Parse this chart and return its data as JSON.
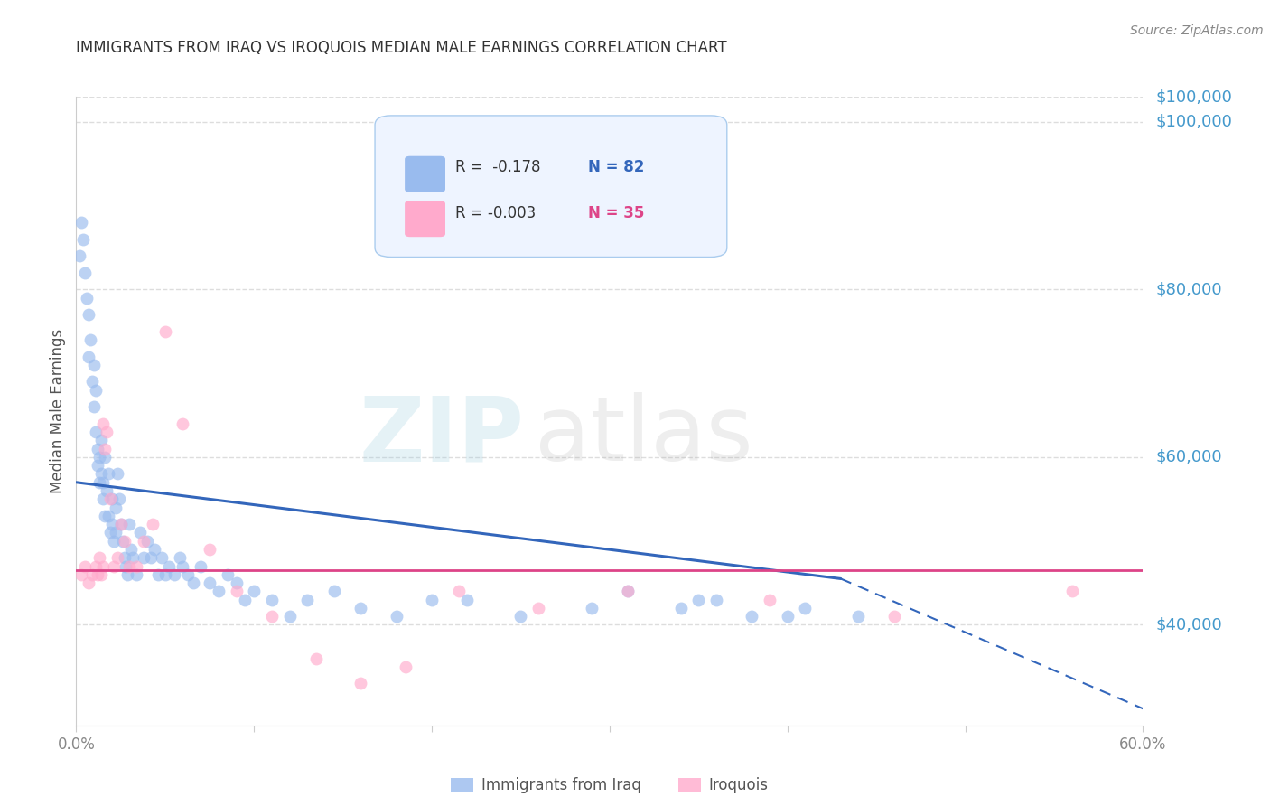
{
  "title": "IMMIGRANTS FROM IRAQ VS IROQUOIS MEDIAN MALE EARNINGS CORRELATION CHART",
  "source": "Source: ZipAtlas.com",
  "ylabel": "Median Male Earnings",
  "watermark_zip": "ZIP",
  "watermark_atlas": "atlas",
  "xlim": [
    0.0,
    0.6
  ],
  "ylim": [
    28000,
    103000
  ],
  "ytick_vals": [
    40000,
    60000,
    80000,
    100000
  ],
  "ytick_labels": [
    "$40,000",
    "$60,000",
    "$80,000",
    "$100,000"
  ],
  "blue_color": "#99BBEE",
  "pink_color": "#FFAACC",
  "blue_line_color": "#3366BB",
  "pink_line_color": "#DD4488",
  "blue_scatter_alpha": 0.65,
  "pink_scatter_alpha": 0.65,
  "legend_R_blue": " -0.178",
  "legend_N_blue": "82",
  "legend_R_pink": "-0.003",
  "legend_N_pink": "35",
  "legend_label_blue": "Immigrants from Iraq",
  "legend_label_pink": "Iroquois",
  "blue_trend_x0": 0.0,
  "blue_trend_y0": 57000,
  "blue_trend_x1": 0.43,
  "blue_trend_y1": 45500,
  "blue_trend_x2": 0.6,
  "blue_trend_y2": 30000,
  "pink_trend_y": 46500,
  "blue_x": [
    0.002,
    0.003,
    0.004,
    0.005,
    0.006,
    0.007,
    0.007,
    0.008,
    0.009,
    0.01,
    0.01,
    0.011,
    0.011,
    0.012,
    0.012,
    0.013,
    0.013,
    0.014,
    0.014,
    0.015,
    0.015,
    0.016,
    0.016,
    0.017,
    0.018,
    0.018,
    0.019,
    0.02,
    0.02,
    0.021,
    0.022,
    0.022,
    0.023,
    0.024,
    0.025,
    0.026,
    0.027,
    0.028,
    0.029,
    0.03,
    0.031,
    0.032,
    0.034,
    0.036,
    0.038,
    0.04,
    0.042,
    0.044,
    0.046,
    0.048,
    0.05,
    0.052,
    0.055,
    0.058,
    0.06,
    0.063,
    0.066,
    0.07,
    0.075,
    0.08,
    0.085,
    0.09,
    0.095,
    0.1,
    0.11,
    0.12,
    0.13,
    0.145,
    0.16,
    0.18,
    0.2,
    0.22,
    0.25,
    0.29,
    0.34,
    0.38,
    0.41,
    0.44,
    0.31,
    0.36,
    0.4,
    0.35
  ],
  "blue_y": [
    84000,
    88000,
    86000,
    82000,
    79000,
    77000,
    72000,
    74000,
    69000,
    71000,
    66000,
    68000,
    63000,
    61000,
    59000,
    60000,
    57000,
    62000,
    58000,
    57000,
    55000,
    53000,
    60000,
    56000,
    58000,
    53000,
    51000,
    55000,
    52000,
    50000,
    54000,
    51000,
    58000,
    55000,
    52000,
    50000,
    48000,
    47000,
    46000,
    52000,
    49000,
    48000,
    46000,
    51000,
    48000,
    50000,
    48000,
    49000,
    46000,
    48000,
    46000,
    47000,
    46000,
    48000,
    47000,
    46000,
    45000,
    47000,
    45000,
    44000,
    46000,
    45000,
    43000,
    44000,
    43000,
    41000,
    43000,
    44000,
    42000,
    41000,
    43000,
    43000,
    41000,
    42000,
    42000,
    41000,
    42000,
    41000,
    44000,
    43000,
    41000,
    43000
  ],
  "pink_x": [
    0.003,
    0.005,
    0.007,
    0.009,
    0.011,
    0.012,
    0.013,
    0.014,
    0.015,
    0.015,
    0.016,
    0.017,
    0.019,
    0.021,
    0.023,
    0.025,
    0.027,
    0.03,
    0.034,
    0.038,
    0.043,
    0.05,
    0.06,
    0.075,
    0.09,
    0.11,
    0.135,
    0.16,
    0.185,
    0.215,
    0.26,
    0.31,
    0.39,
    0.46,
    0.56
  ],
  "pink_y": [
    46000,
    47000,
    45000,
    46000,
    47000,
    46000,
    48000,
    46000,
    47000,
    64000,
    61000,
    63000,
    55000,
    47000,
    48000,
    52000,
    50000,
    47000,
    47000,
    50000,
    52000,
    75000,
    64000,
    49000,
    44000,
    41000,
    36000,
    33000,
    35000,
    44000,
    42000,
    44000,
    43000,
    41000,
    44000
  ],
  "grid_color": "#DDDDDD",
  "background_color": "#FFFFFF"
}
